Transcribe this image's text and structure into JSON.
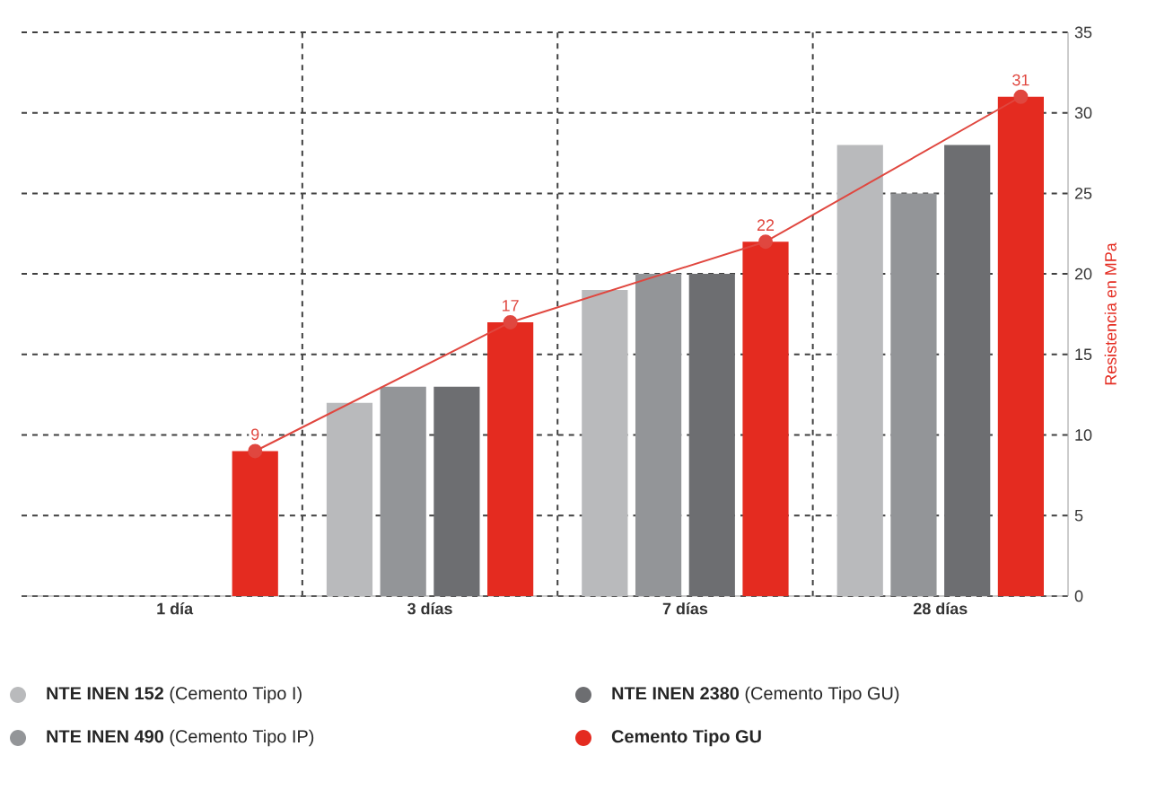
{
  "chart_data": {
    "type": "bar",
    "ylabel": "Resistencia en MPa",
    "categories": [
      "1 día",
      "3 días",
      "7 días",
      "28 días"
    ],
    "series": [
      {
        "name": "**NTE INEN 152** (Cemento Tipo I)",
        "color": "#b9babc",
        "values": [
          null,
          12,
          19,
          28
        ]
      },
      {
        "name": "**NTE INEN 490** (Cemento Tipo IP)",
        "color": "#939598",
        "values": [
          null,
          13,
          20,
          25
        ]
      },
      {
        "name": "**NTE INEN 2380** (Cemento Tipo GU)",
        "color": "#6d6e71",
        "values": [
          null,
          13,
          20,
          28
        ]
      },
      {
        "name": "**Cemento Tipo GU**",
        "color": "#e42b20",
        "values": [
          9,
          17,
          22,
          31
        ]
      },
      {
        "type": "line",
        "color": "#e0473f",
        "marker": "circle",
        "values": [
          9,
          17,
          22,
          31
        ],
        "value_labels": [
          "9",
          "17",
          "22",
          "31"
        ]
      }
    ],
    "ylim": [
      0,
      35
    ],
    "yticks": [
      0,
      5,
      10,
      15,
      20,
      25,
      30,
      35
    ],
    "grid": true,
    "legend": "bottom"
  }
}
